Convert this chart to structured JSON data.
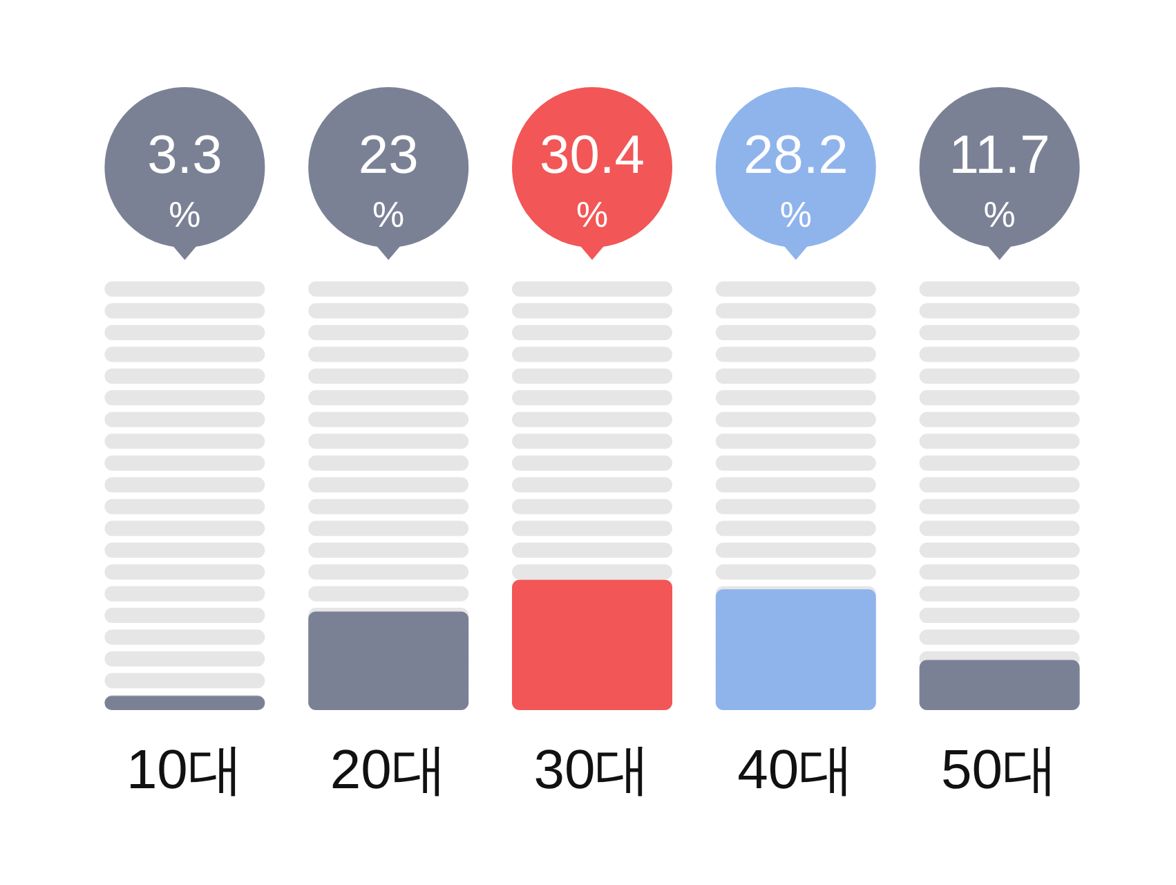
{
  "chart_data": {
    "type": "bar",
    "categories": [
      "10대",
      "20대",
      "30대",
      "40대",
      "50대"
    ],
    "values": [
      3.3,
      23,
      30.4,
      28.2,
      11.7
    ],
    "colors": [
      "#7b8195",
      "#7b8195",
      "#f25656",
      "#8fb4ec",
      "#7b8195"
    ],
    "value_labels": [
      "3.3%",
      "23%",
      "30.4%",
      "28.2%",
      "11.7%"
    ],
    "ylim": [
      0,
      100
    ],
    "tick_labels": "x"
  }
}
